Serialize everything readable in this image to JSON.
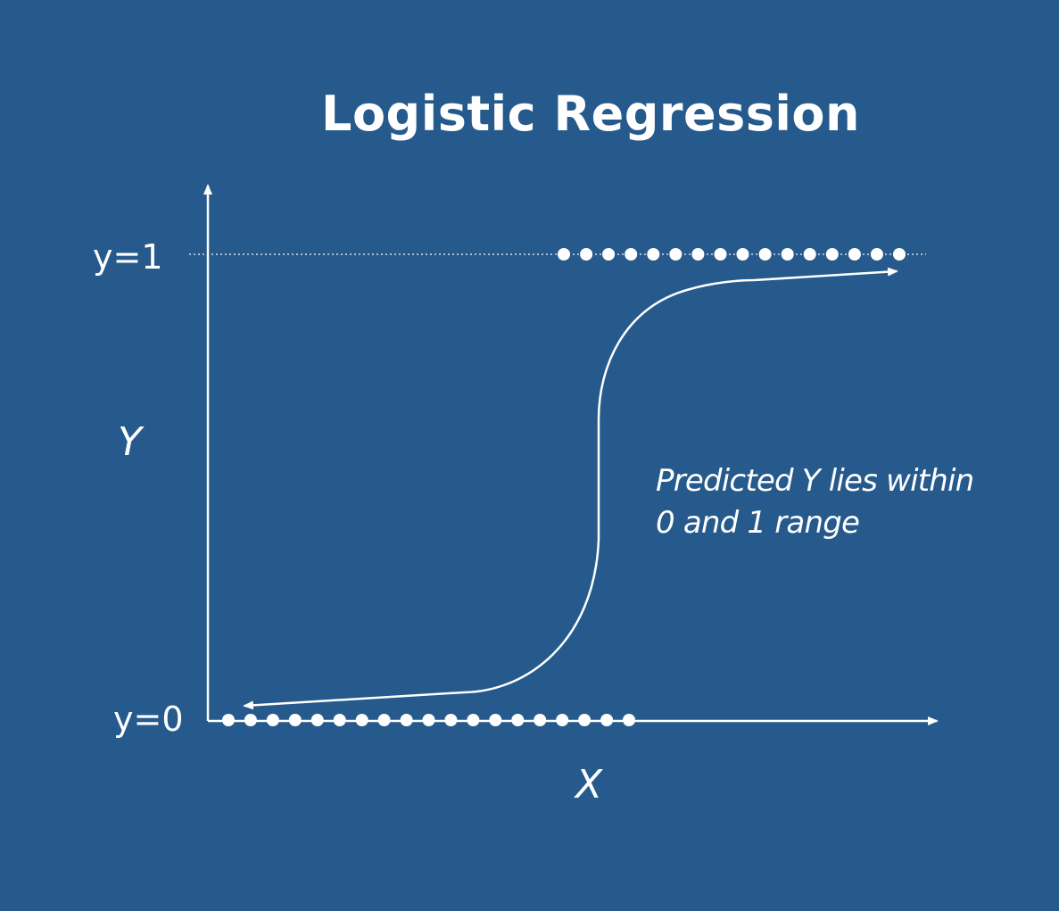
{
  "title": "Logistic Regression",
  "labels": {
    "y_one": "y=1",
    "y_zero": "y=0",
    "y_axis": "Y",
    "x_axis": "X"
  },
  "annotation": {
    "line1": "Predicted Y lies within",
    "line2": "0 and 1 range"
  },
  "points": {
    "class_1_count": 16,
    "class_0_count": 19
  },
  "colors": {
    "background": "#265a8c",
    "foreground": "#ffffff"
  }
}
